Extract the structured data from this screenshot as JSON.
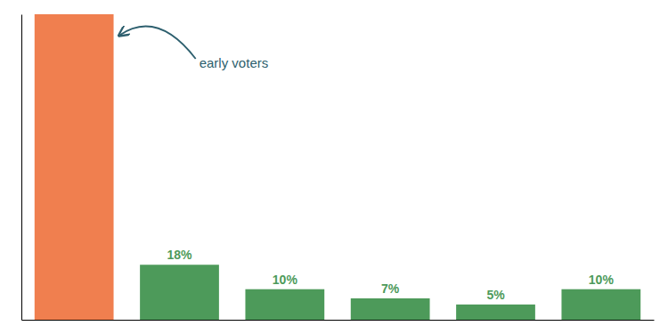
{
  "chart_data": {
    "type": "bar",
    "categories": [
      null,
      null,
      null,
      null,
      null,
      null
    ],
    "values": [
      100,
      18,
      10,
      7,
      5,
      10
    ],
    "value_labels": [
      null,
      "18%",
      "10%",
      "7%",
      "5%",
      "10%"
    ],
    "colors": [
      "#f07f4f",
      "#4d9a5a",
      "#4d9a5a",
      "#4d9a5a",
      "#4d9a5a",
      "#4d9a5a"
    ],
    "data_labels": true,
    "ylim": [
      0,
      100
    ],
    "tick_labels": false,
    "annotations": [
      {
        "text": "early voters",
        "color": "#2d5f6e"
      }
    ]
  }
}
